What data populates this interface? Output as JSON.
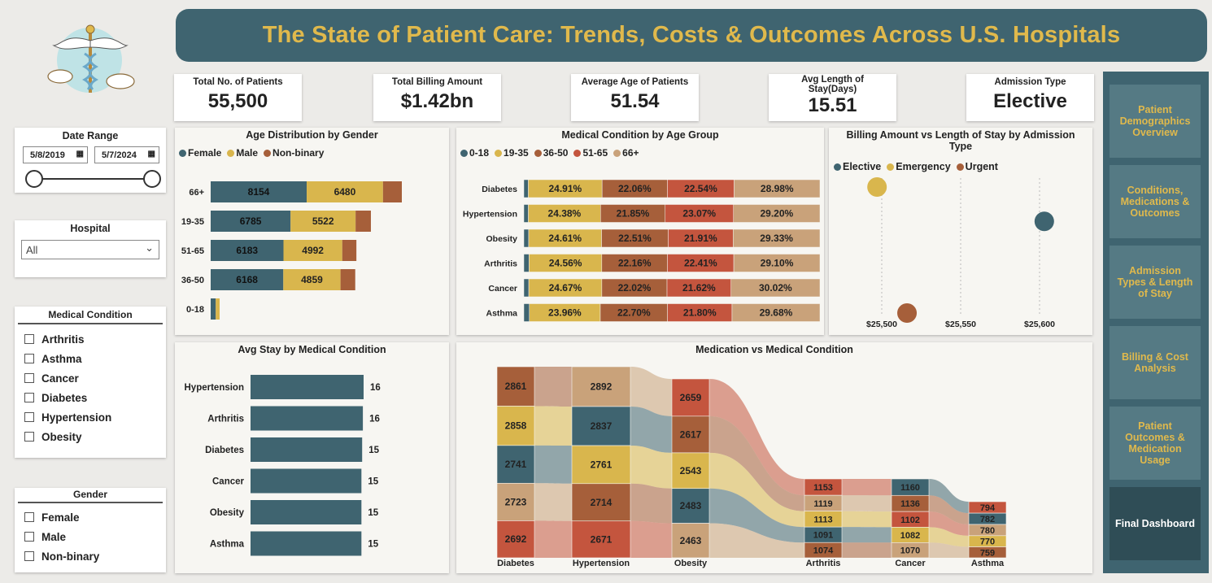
{
  "header": {
    "title": "The State of Patient Care: Trends, Costs & Outcomes Across U.S. Hospitals"
  },
  "kpis": [
    {
      "label": "Total No. of Patients",
      "value": "55,500"
    },
    {
      "label": "Total Billing Amount",
      "value": "$1.42bn"
    },
    {
      "label": "Average Age of Patients",
      "value": "51.54"
    },
    {
      "label": "Avg Length of Stay(Days)",
      "value": "15.51"
    },
    {
      "label": "Admission Type",
      "value": "Elective"
    }
  ],
  "date_range": {
    "title": "Date Range",
    "start": "5/8/2019",
    "end": "5/7/2024"
  },
  "hospital": {
    "title": "Hospital",
    "selected": "All"
  },
  "condition_slicer": {
    "title": "Medical Condition",
    "options": [
      "Arthritis",
      "Asthma",
      "Cancer",
      "Diabetes",
      "Hypertension",
      "Obesity"
    ]
  },
  "gender_slicer": {
    "title": "Gender",
    "options": [
      "Female",
      "Male",
      "Non-binary"
    ]
  },
  "nav": {
    "items": [
      "Patient Demographics Overview",
      "Conditions, Medications & Outcomes",
      "Admission Types & Length of Stay",
      "Billing & Cost Analysis",
      "Patient Outcomes & Medication Usage",
      "Final Dashboard"
    ]
  },
  "colors": {
    "teal": "#3f6470",
    "gold": "#d9b64d",
    "brown": "#a65f3a",
    "red": "#c4553e",
    "tan": "#c9a27a",
    "nav_bg": "#3f6470",
    "nav_btn": "#557a84",
    "title_gold": "#e0b94c"
  },
  "chart_data": [
    {
      "type": "bar",
      "title": "Age Distribution by Gender",
      "orientation": "horizontal",
      "stacked": true,
      "categories": [
        "66+",
        "19-35",
        "51-65",
        "36-50",
        "0-18"
      ],
      "series": [
        {
          "name": "Female",
          "values": [
            8154,
            6785,
            6183,
            6168,
            430
          ]
        },
        {
          "name": "Male",
          "values": [
            6480,
            5522,
            4992,
            4859,
            330
          ]
        },
        {
          "name": "Non-binary",
          "values": [
            1600,
            1300,
            1200,
            1250,
            0
          ]
        }
      ],
      "data_labels": [
        [
          "8154",
          "6785",
          "6183",
          "6168",
          ""
        ],
        [
          "6480",
          "5522",
          "4992",
          "4859",
          ""
        ]
      ]
    },
    {
      "type": "bar",
      "title": "Medical Condition by Age Group",
      "orientation": "horizontal",
      "stacked": true,
      "percent": true,
      "categories": [
        "Diabetes",
        "Hypertension",
        "Obesity",
        "Arthritis",
        "Cancer",
        "Asthma"
      ],
      "series": [
        {
          "name": "0-18",
          "values": [
            1.51,
            1.52,
            1.64,
            1.77,
            1.67,
            1.86
          ]
        },
        {
          "name": "19-35",
          "values": [
            24.91,
            24.38,
            24.61,
            24.56,
            24.67,
            23.96
          ]
        },
        {
          "name": "36-50",
          "values": [
            22.06,
            21.85,
            22.51,
            22.16,
            22.02,
            22.7
          ]
        },
        {
          "name": "51-65",
          "values": [
            22.54,
            23.07,
            21.91,
            22.41,
            21.62,
            21.8
          ]
        },
        {
          "name": "66+",
          "values": [
            28.98,
            29.2,
            29.33,
            29.1,
            30.02,
            29.68
          ]
        }
      ],
      "labels": [
        [
          "24.91%",
          "24.38%",
          "24.61%",
          "24.56%",
          "24.67%",
          "23.96%"
        ],
        [
          "22.06%",
          "21.85%",
          "22.51%",
          "22.16%",
          "22.02%",
          "22.70%"
        ],
        [
          "22.54%",
          "23.07%",
          "21.91%",
          "22.41%",
          "21.62%",
          "21.80%"
        ],
        [
          "28.98%",
          "29.20%",
          "29.33%",
          "29.10%",
          "30.02%",
          "29.68%"
        ]
      ]
    },
    {
      "type": "scatter",
      "title": "Billing Amount vs Length of Stay by Admission Type",
      "xticks": [
        "$25,500",
        "$25,550",
        "$25,600"
      ],
      "xlim": [
        25480,
        25620
      ],
      "points": [
        {
          "name": "Elective",
          "x": 25603,
          "y": 15.53
        },
        {
          "name": "Emergency",
          "x": 25497,
          "y": 15.56
        },
        {
          "name": "Urgent",
          "x": 25516,
          "y": 15.45
        }
      ]
    },
    {
      "type": "bar",
      "title": "Avg Stay by Medical Condition",
      "orientation": "horizontal",
      "categories": [
        "Hypertension",
        "Arthritis",
        "Diabetes",
        "Cancer",
        "Obesity",
        "Asthma"
      ],
      "values": [
        15.6,
        15.5,
        15.4,
        15.3,
        15.3,
        15.3
      ],
      "labels": [
        "16",
        "16",
        "15",
        "15",
        "15",
        "15"
      ]
    },
    {
      "type": "sankey",
      "title": "Medication vs Medical Condition",
      "categories": [
        "Diabetes",
        "Hypertension",
        "Obesity",
        "Arthritis",
        "Cancer",
        "Asthma"
      ],
      "columns": [
        [
          2861,
          2858,
          2741,
          2723,
          2692
        ],
        [
          2892,
          2837,
          2761,
          2714,
          2671
        ],
        [
          2659,
          2617,
          2543,
          2483,
          2463
        ],
        [
          1153,
          1119,
          1113,
          1091,
          1074
        ],
        [
          1160,
          1136,
          1102,
          1082,
          1070
        ],
        [
          794,
          782,
          780,
          770,
          759
        ]
      ]
    }
  ]
}
